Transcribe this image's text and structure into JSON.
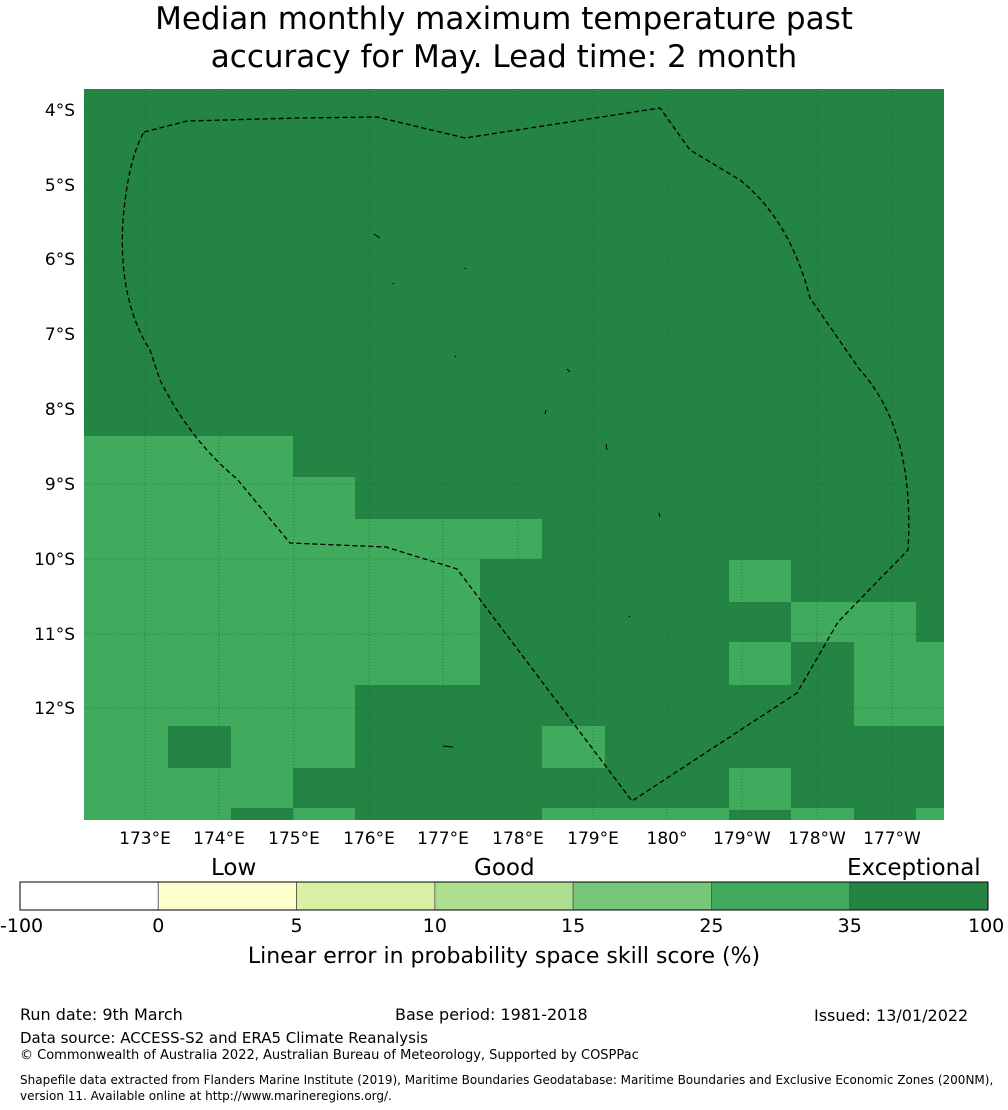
{
  "title": {
    "line1": "Median monthly maximum temperature past",
    "line2": "accuracy for May. Lead time: 2 month"
  },
  "map": {
    "lat_labels": [
      "4°S",
      "5°S",
      "6°S",
      "7°S",
      "8°S",
      "9°S",
      "10°S",
      "11°S",
      "12°S"
    ],
    "lon_labels": [
      "173°E",
      "174°E",
      "175°E",
      "176°E",
      "177°E",
      "178°E",
      "179°E",
      "180°",
      "179°W",
      "178°W",
      "177°W"
    ],
    "colors": {
      "exceptional": "#238443",
      "very_good": "#41ab5d",
      "boundary": "#000000"
    }
  },
  "legend": {
    "category_labels": {
      "low": "Low",
      "good": "Good",
      "exceptional": "Exceptional"
    },
    "ticks": [
      "-100",
      "0",
      "5",
      "10",
      "15",
      "25",
      "35",
      "100"
    ],
    "bin_colors": [
      "#ffffff",
      "#ffffcc",
      "#d9f0a3",
      "#addd8e",
      "#78c679",
      "#41ab5d",
      "#238443"
    ],
    "title": "Linear error in probability space skill score (%)"
  },
  "footer": {
    "run_date": "Run date: 9th March",
    "base_period": "Base period: 1981-2018",
    "issued": "Issued: 13/01/2022",
    "data_source": "Data source: ACCESS-S2 and ERA5 Climate Reanalysis",
    "copyright": "© Commonwealth of Australia 2022, Australian Bureau of Meteorology, Supported by COSPPac",
    "shapefile_line1": "Shapefile data extracted from Flanders Marine Institute (2019), Maritime Boundaries Geodatabase: Maritime Boundaries and Exclusive Economic Zones (200NM),",
    "shapefile_line2": "version 11. Available online at http://www.marineregions.org/."
  }
}
